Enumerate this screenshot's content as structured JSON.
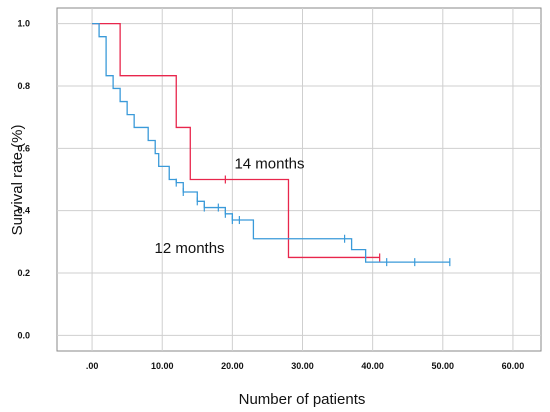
{
  "chart_data": {
    "type": "line",
    "title": "",
    "xlabel": "Number of patients",
    "ylabel": "Survival rate (%)",
    "xlim": [
      -5,
      64
    ],
    "ylim": [
      -0.05,
      1.05
    ],
    "x_ticks": [
      0,
      10,
      20,
      30,
      40,
      50,
      60
    ],
    "x_tick_labels": [
      ".00",
      "10.00",
      "20.00",
      "30.00",
      "40.00",
      "50.00",
      "60.00"
    ],
    "y_ticks": [
      0.0,
      0.2,
      0.4,
      0.6,
      0.8,
      1.0
    ],
    "y_tick_labels": [
      "0.0",
      "0.2",
      "0.4",
      "0.6",
      "0.8",
      "1.0"
    ],
    "grid": true,
    "series": [
      {
        "color": "#e8264c",
        "steps": [
          [
            0,
            1.0
          ],
          [
            4,
            0.833
          ],
          [
            12,
            0.667
          ],
          [
            14,
            0.5
          ],
          [
            28,
            0.25
          ],
          [
            41,
            0.25
          ]
        ],
        "censored": [
          [
            19,
            0.5
          ],
          [
            41,
            0.25
          ]
        ]
      },
      {
        "color": "#3a9ad9",
        "steps": [
          [
            0,
            1.0
          ],
          [
            1,
            0.958
          ],
          [
            2,
            0.833
          ],
          [
            3,
            0.792
          ],
          [
            4,
            0.75
          ],
          [
            5,
            0.708
          ],
          [
            6,
            0.667
          ],
          [
            8,
            0.625
          ],
          [
            9,
            0.583
          ],
          [
            9.5,
            0.542
          ],
          [
            11,
            0.5
          ],
          [
            12,
            0.49
          ],
          [
            13,
            0.46
          ],
          [
            15,
            0.43
          ],
          [
            16,
            0.41
          ],
          [
            19,
            0.39
          ],
          [
            20,
            0.37
          ],
          [
            23,
            0.31
          ],
          [
            37,
            0.275
          ],
          [
            39,
            0.235
          ],
          [
            51,
            0.235
          ]
        ],
        "censored": [
          [
            12,
            0.49
          ],
          [
            13,
            0.46
          ],
          [
            15,
            0.43
          ],
          [
            16,
            0.41
          ],
          [
            18,
            0.41
          ],
          [
            19,
            0.39
          ],
          [
            20,
            0.37
          ],
          [
            21,
            0.37
          ],
          [
            36,
            0.31
          ],
          [
            42,
            0.235
          ],
          [
            46,
            0.235
          ],
          [
            51,
            0.235
          ]
        ]
      }
    ],
    "annotations": [
      {
        "text": "14 months",
        "x": 20.3,
        "y": 0.535
      },
      {
        "text": "12 months",
        "x": 8.9,
        "y": 0.265
      }
    ]
  }
}
